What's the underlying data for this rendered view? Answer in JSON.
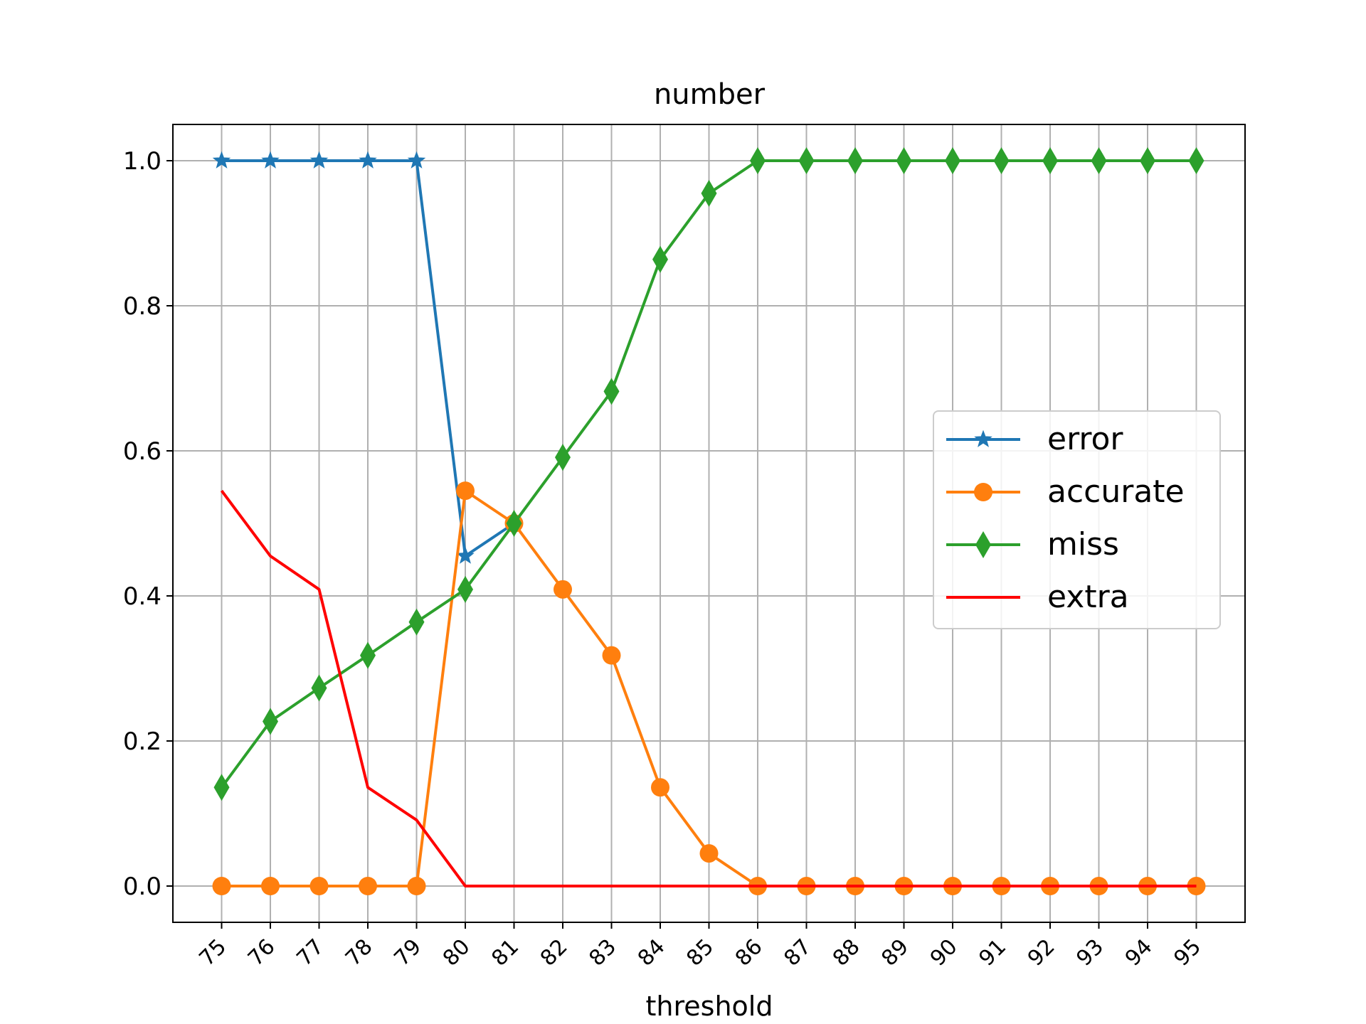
{
  "chart_data": {
    "type": "line",
    "title": "number",
    "xlabel": "threshold",
    "ylabel": "",
    "x": [
      75,
      76,
      77,
      78,
      79,
      80,
      81,
      82,
      83,
      84,
      85,
      86,
      87,
      88,
      89,
      90,
      91,
      92,
      93,
      94,
      95
    ],
    "x_tick_labels": [
      "75",
      "76",
      "77",
      "78",
      "79",
      "80",
      "81",
      "82",
      "83",
      "84",
      "85",
      "86",
      "87",
      "88",
      "89",
      "90",
      "91",
      "92",
      "93",
      "94",
      "95"
    ],
    "x_tick_rotation_deg": 45,
    "y_ticks": [
      0.0,
      0.2,
      0.4,
      0.6,
      0.8,
      1.0
    ],
    "y_tick_labels": [
      "0.0",
      "0.2",
      "0.4",
      "0.6",
      "0.8",
      "1.0"
    ],
    "xlim": [
      74,
      96
    ],
    "ylim": [
      -0.05,
      1.05
    ],
    "grid": true,
    "legend_position": "center-right",
    "series": [
      {
        "name": "error",
        "color": "#1f77b4",
        "marker": "star",
        "values": [
          1.0,
          1.0,
          1.0,
          1.0,
          1.0,
          0.455,
          0.5,
          null,
          null,
          null,
          null,
          null,
          null,
          null,
          null,
          null,
          null,
          null,
          null,
          null,
          null
        ]
      },
      {
        "name": "accurate",
        "color": "#ff7f0e",
        "marker": "circle",
        "values": [
          0.0,
          0.0,
          0.0,
          0.0,
          0.0,
          0.545,
          0.5,
          0.409,
          0.318,
          0.136,
          0.045,
          0.0,
          0.0,
          0.0,
          0.0,
          0.0,
          0.0,
          0.0,
          0.0,
          0.0,
          0.0
        ]
      },
      {
        "name": "miss",
        "color": "#2ca02c",
        "marker": "diamond",
        "values": [
          0.136,
          0.227,
          0.273,
          0.318,
          0.364,
          0.409,
          0.5,
          0.591,
          0.682,
          0.864,
          0.955,
          1.0,
          1.0,
          1.0,
          1.0,
          1.0,
          1.0,
          1.0,
          1.0,
          1.0,
          1.0
        ]
      },
      {
        "name": "extra",
        "color": "#ff0000",
        "marker": "none",
        "values": [
          0.545,
          0.455,
          0.409,
          0.136,
          0.091,
          0.0,
          0.0,
          0.0,
          0.0,
          0.0,
          0.0,
          0.0,
          0.0,
          0.0,
          0.0,
          0.0,
          0.0,
          0.0,
          0.0,
          0.0,
          0.0
        ]
      }
    ]
  }
}
